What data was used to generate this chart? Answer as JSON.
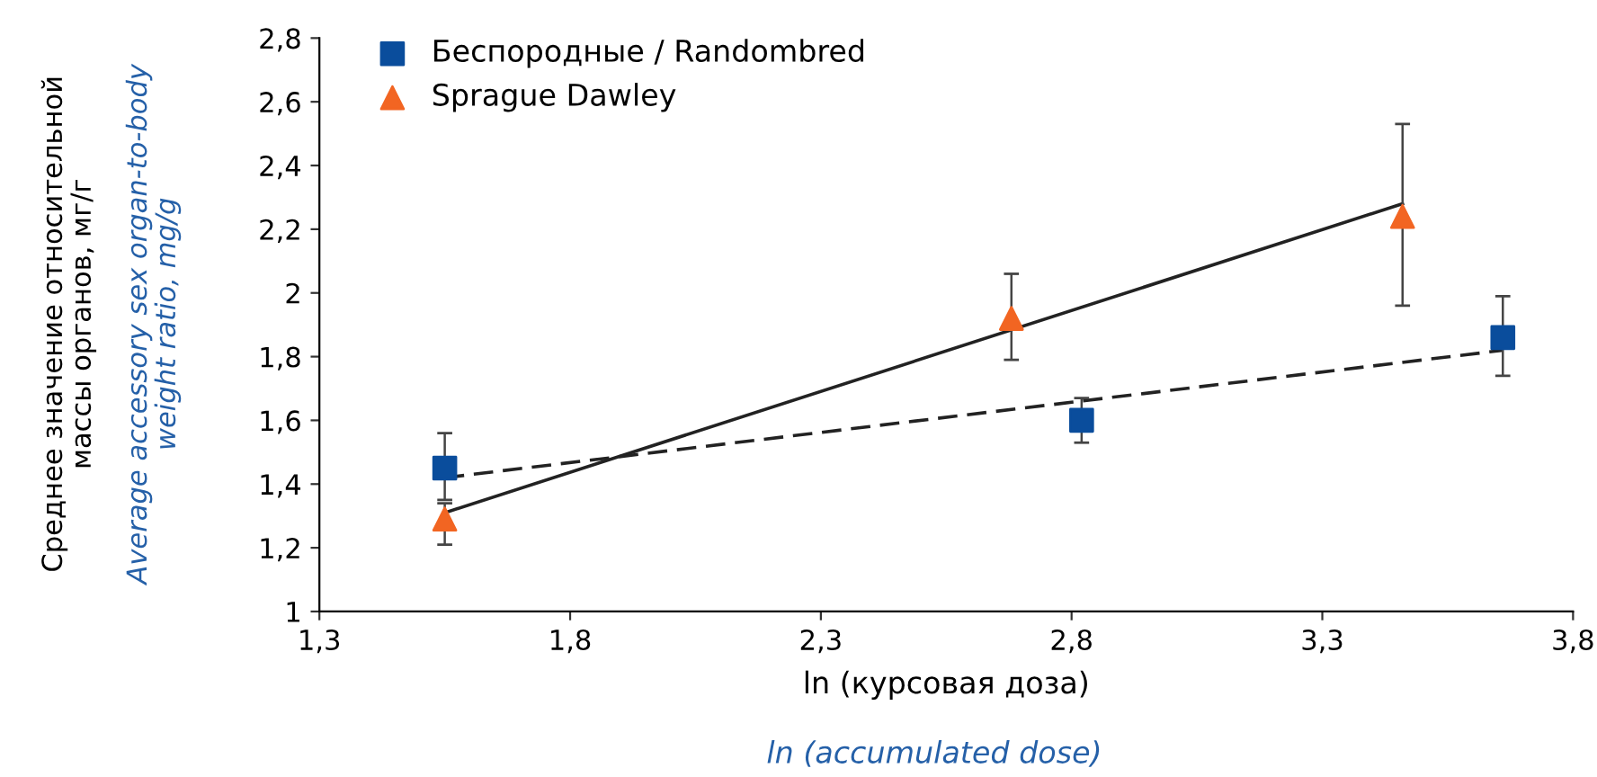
{
  "chart_data": {
    "type": "scatter",
    "xlabel": "ln (курсовая доза)",
    "annotations": [
      "Среднее значение относительной\nмассы органов, мг/г",
      "Average accessory sex organ-to-body\nweight ratio, mg/g",
      "ln (accumulated dose)"
    ],
    "series": [
      {
        "name": "Беспородные / Randombred",
        "color": "#0a4d9c",
        "marker": "square",
        "x": [
          1.55,
          2.82,
          3.66
        ],
        "values": [
          1.45,
          1.6,
          1.86
        ],
        "errors": [
          [
            1.35,
            1.56
          ],
          [
            1.53,
            1.67
          ],
          [
            1.74,
            1.99
          ]
        ]
      },
      {
        "name": "Sprague Dawley",
        "color": "#f26522",
        "marker": "triangle",
        "x": [
          1.55,
          2.68,
          3.46
        ],
        "values": [
          1.29,
          1.92,
          2.24
        ],
        "errors": [
          [
            1.21,
            1.34
          ],
          [
            1.79,
            2.06
          ],
          [
            1.96,
            2.53
          ]
        ]
      },
      {
        "type": "line",
        "color": "#222222",
        "line_style": "solid",
        "x": [
          1.55,
          3.46
        ],
        "values": [
          1.31,
          2.28
        ]
      },
      {
        "type": "line",
        "color": "#222222",
        "line_style": "dashed",
        "x": [
          1.55,
          3.66
        ],
        "values": [
          1.42,
          1.82
        ]
      }
    ],
    "xlim": [
      1.3,
      3.8
    ],
    "xticks": [
      {
        "value": 1.3,
        "label": "1,3"
      },
      {
        "value": 1.8,
        "label": "1,8"
      },
      {
        "value": 2.3,
        "label": "2,3"
      },
      {
        "value": 2.8,
        "label": "2,8"
      },
      {
        "value": 3.3,
        "label": "3,3"
      },
      {
        "value": 3.8,
        "label": "3,8"
      }
    ],
    "ylim": [
      1,
      2.8
    ],
    "yticks": [
      1,
      {
        "value": 1.2,
        "label": "1,2"
      },
      {
        "value": 1.4,
        "label": "1,4"
      },
      {
        "value": 1.6,
        "label": "1,6"
      },
      {
        "value": 1.8,
        "label": "1,8"
      },
      2,
      {
        "value": 2.2,
        "label": "2,2"
      },
      {
        "value": 2.4,
        "label": "2,4"
      },
      {
        "value": 2.6,
        "label": "2,6"
      },
      {
        "value": 2.8,
        "label": "2,8"
      }
    ],
    "grid": false,
    "legend": "top left"
  }
}
